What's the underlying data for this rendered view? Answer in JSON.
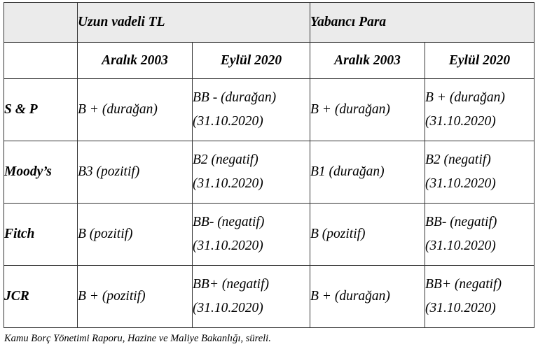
{
  "table": {
    "group_headers": [
      "Uzun vadeli TL",
      "Yabancı Para"
    ],
    "sub_headers": [
      "Aralık 2003",
      "Eylül 2020",
      "Aralık 2003",
      "Eylül 2020"
    ],
    "rows": [
      {
        "agency": "S & P",
        "cells": [
          {
            "line1": "B + (durağan)",
            "line2": ""
          },
          {
            "line1": "BB - (durağan)",
            "line2": "(31.10.2020)"
          },
          {
            "line1": "B + (durağan)",
            "line2": ""
          },
          {
            "line1": "B + (durağan)",
            "line2": "(31.10.2020)"
          }
        ]
      },
      {
        "agency": "Moody’s",
        "cells": [
          {
            "line1": "B3 (pozitif)",
            "line2": ""
          },
          {
            "line1": "B2 (negatif)",
            "line2": "(31.10.2020)"
          },
          {
            "line1": "B1 (durağan)",
            "line2": ""
          },
          {
            "line1": "B2 (negatif)",
            "line2": "(31.10.2020)"
          }
        ]
      },
      {
        "agency": "Fitch",
        "cells": [
          {
            "line1": "B (pozitif)",
            "line2": ""
          },
          {
            "line1": "BB- (negatif)",
            "line2": "(31.10.2020)"
          },
          {
            "line1": "B (pozitif)",
            "line2": ""
          },
          {
            "line1": "BB- (negatif)",
            "line2": "(31.10.2020)"
          }
        ]
      },
      {
        "agency": "JCR",
        "cells": [
          {
            "line1": "B + (pozitif)",
            "line2": ""
          },
          {
            "line1": "BB+ (negatif)",
            "line2": "(31.10.2020)"
          },
          {
            "line1": "B + (durağan)",
            "line2": ""
          },
          {
            "line1": "BB+ (negatif)",
            "line2": "(31.10.2020)"
          }
        ]
      }
    ]
  },
  "source_note": "Kamu Borç Yönetimi Raporu, Hazine ve Maliye Bakanlığı, süreli."
}
